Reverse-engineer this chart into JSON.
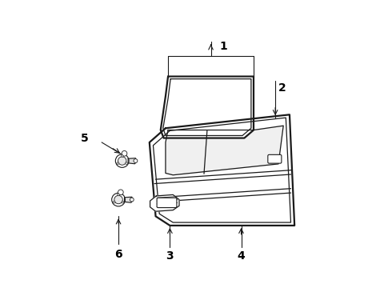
{
  "background_color": "#ffffff",
  "line_color": "#1a1a1a",
  "label_color": "#000000",
  "fig_width": 4.9,
  "fig_height": 3.6,
  "dpi": 100,
  "label_fontsize": 10,
  "lw_outer": 1.6,
  "lw_inner": 0.9,
  "lw_leader": 0.8
}
